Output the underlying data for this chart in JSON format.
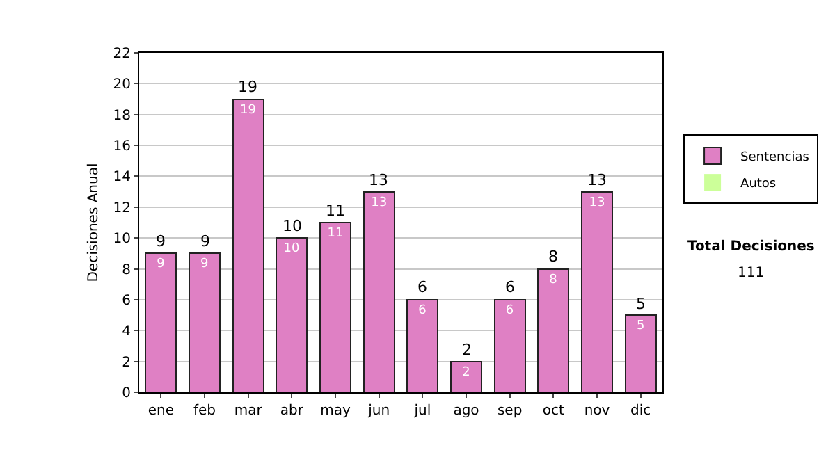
{
  "chart_data": {
    "type": "bar",
    "ylabel": "Decisiones Anual",
    "stacked": true,
    "categories": [
      "ene",
      "feb",
      "mar",
      "abr",
      "may",
      "jun",
      "jul",
      "ago",
      "sep",
      "oct",
      "nov",
      "dic"
    ],
    "series": [
      {
        "name": "Sentencias",
        "color": "#df80c4",
        "values": [
          9,
          9,
          19,
          10,
          11,
          13,
          6,
          2,
          6,
          8,
          13,
          5
        ],
        "value_labels": [
          "9",
          "9",
          "19",
          "10",
          "11",
          "13",
          "6",
          "2",
          "6",
          "8",
          "13",
          "5"
        ]
      },
      {
        "name": "Autos",
        "color": "#ccff99",
        "values": [
          0,
          0,
          0,
          0,
          0,
          0,
          0,
          0,
          0,
          0,
          0,
          0
        ]
      }
    ],
    "totals": [
      "9",
      "9",
      "19",
      "10",
      "11",
      "13",
      "6",
      "2",
      "6",
      "8",
      "13",
      "5"
    ],
    "ylim": [
      0,
      22
    ],
    "yticks": [
      0,
      2,
      4,
      6,
      8,
      10,
      12,
      14,
      16,
      18,
      20,
      22
    ],
    "grid": "y",
    "legend": "right",
    "annotations": [
      "Total Decisiones",
      "111"
    ]
  }
}
